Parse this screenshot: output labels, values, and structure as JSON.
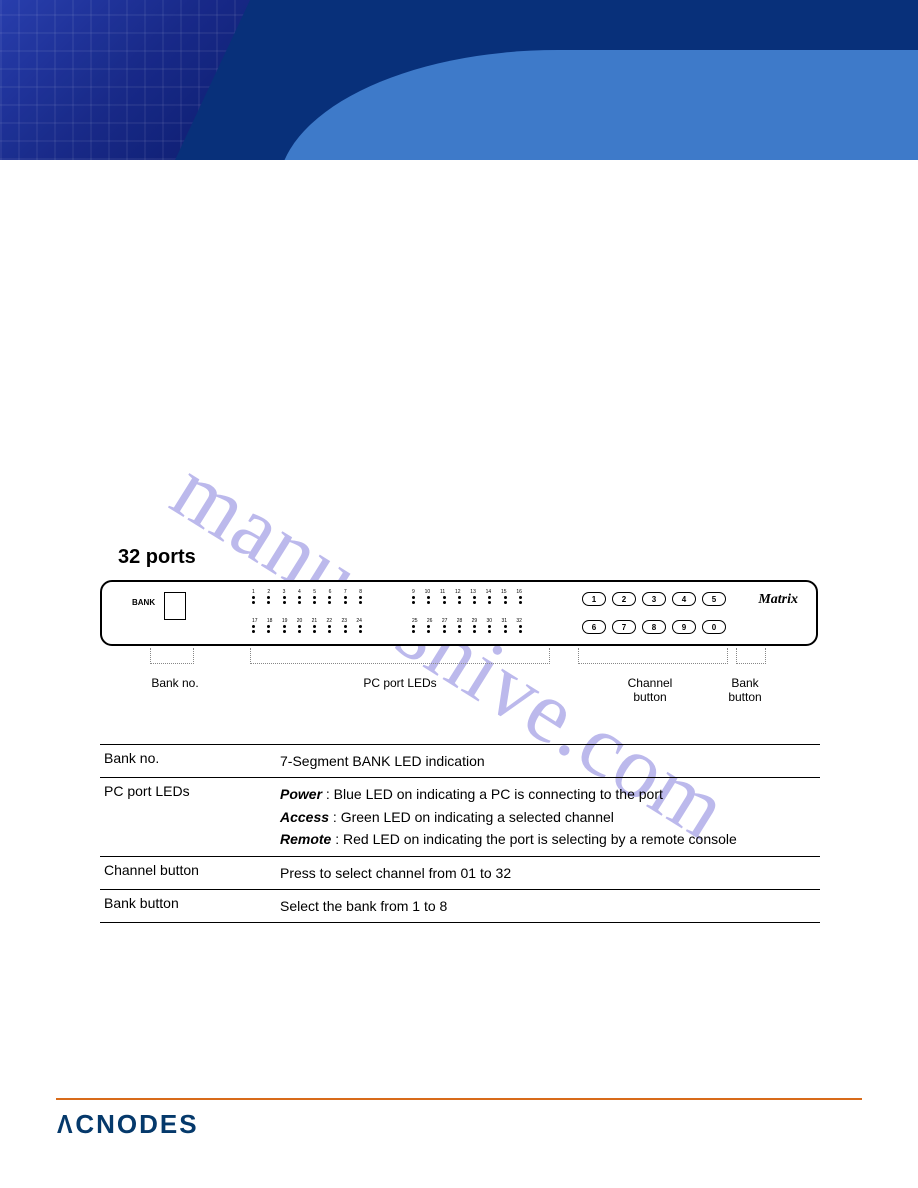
{
  "watermark": "manualshive.com",
  "section_title": "32 ports",
  "device": {
    "bank_label": "BANK",
    "brand": "Matrix",
    "led_row1a": [
      "1",
      "2",
      "3",
      "4",
      "5",
      "6",
      "7",
      "8"
    ],
    "led_row1b": [
      "9",
      "10",
      "11",
      "12",
      "13",
      "14",
      "15",
      "16"
    ],
    "led_row2a": [
      "17",
      "18",
      "19",
      "20",
      "21",
      "22",
      "23",
      "24"
    ],
    "led_row2b": [
      "25",
      "26",
      "27",
      "28",
      "29",
      "30",
      "31",
      "32"
    ],
    "channel_row1": [
      "1",
      "2",
      "3",
      "4",
      "5"
    ],
    "channel_row2": [
      "6",
      "7",
      "8",
      "9",
      "0"
    ]
  },
  "callouts": {
    "bank_no": "Bank no.",
    "pc_port_leds": "PC port LEDs",
    "channel_button": "Channel\nbutton",
    "bank_button": "Bank\nbutton"
  },
  "table": {
    "rows": [
      {
        "label": "Bank no.",
        "lines": [
          {
            "plain": "7-Segment BANK LED indication"
          }
        ]
      },
      {
        "label": "PC port LEDs",
        "lines": [
          {
            "em": "Power",
            "rest": "  : Blue LED on indicating a PC is connecting to the port"
          },
          {
            "em": "Access",
            "rest": " : Green LED on indicating a selected channel"
          },
          {
            "em": "Remote",
            "rest": " : Red LED on indicating the port is selecting by a remote console"
          }
        ]
      },
      {
        "label": "Channel button",
        "lines": [
          {
            "plain": "Press to select channel from 01 to 32"
          }
        ]
      },
      {
        "label": "Bank button",
        "lines": [
          {
            "plain": "Select the bank from 1 to 8"
          }
        ]
      }
    ]
  },
  "footer": {
    "logo": "CNODES"
  },
  "colors": {
    "banner_dark": "#08307a",
    "banner_light": "#3e7ac9",
    "footer_rule": "#d86b1a",
    "logo_color": "#05396b",
    "watermark_color": "#b5b2ea"
  }
}
